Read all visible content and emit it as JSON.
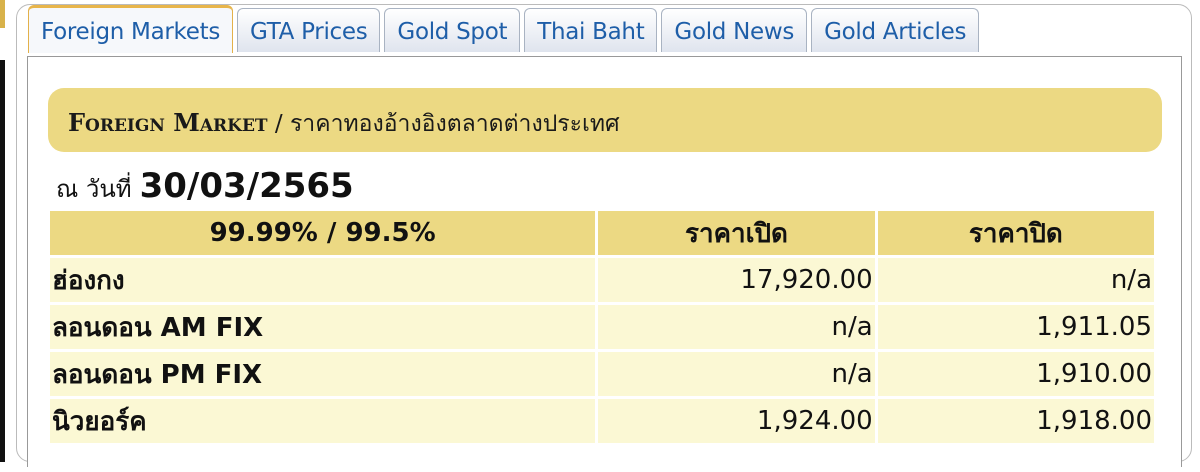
{
  "tabs": [
    {
      "label": "Foreign Markets",
      "active": true
    },
    {
      "label": "GTA Prices"
    },
    {
      "label": "Gold Spot"
    },
    {
      "label": "Thai Baht"
    },
    {
      "label": "Gold News"
    },
    {
      "label": "Gold Articles"
    }
  ],
  "title": {
    "en": "Foreign Market",
    "sep": " / ",
    "th": "ราคาทองอ้างอิงตลาดต่างประเทศ"
  },
  "date": {
    "label": "ณ วันที่",
    "value": "30/03/2565"
  },
  "table": {
    "headers": [
      "99.99% / 99.5%",
      "ราคาเปิด",
      "ราคาปิด"
    ],
    "rows": [
      [
        "ฮ่องกง",
        "17,920.00",
        "n/a"
      ],
      [
        "ลอนดอน AM FIX",
        "n/a",
        "1,911.05"
      ],
      [
        "ลอนดอน PM FIX",
        "n/a",
        "1,910.00"
      ],
      [
        "นิวยอร์ค",
        "1,924.00",
        "1,918.00"
      ]
    ]
  },
  "colors": {
    "accent_gold": "#ecd983",
    "row_bg": "#fbf8d4",
    "tab_text": "#1e5ea8"
  }
}
